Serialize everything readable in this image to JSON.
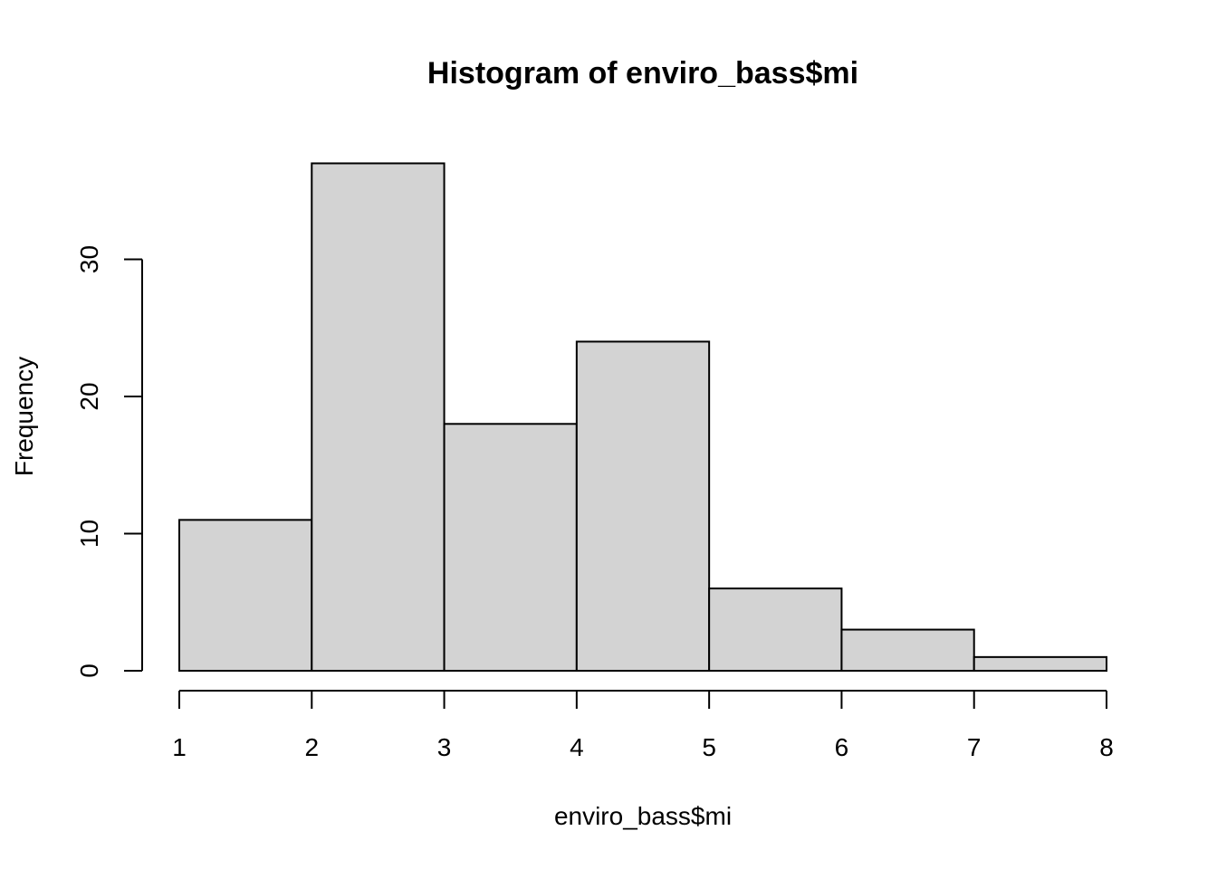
{
  "chart_data": {
    "type": "bar",
    "title": "Histogram of enviro_bass$mi",
    "xlabel": "enviro_bass$mi",
    "ylabel": "Frequency",
    "bins": [
      {
        "from": 1,
        "to": 2,
        "count": 11
      },
      {
        "from": 2,
        "to": 3,
        "count": 37
      },
      {
        "from": 3,
        "to": 4,
        "count": 18
      },
      {
        "from": 4,
        "to": 5,
        "count": 24
      },
      {
        "from": 5,
        "to": 6,
        "count": 6
      },
      {
        "from": 6,
        "to": 7,
        "count": 3
      },
      {
        "from": 7,
        "to": 8,
        "count": 1
      }
    ],
    "xlim": [
      1,
      8
    ],
    "ylim": [
      0,
      37
    ],
    "x_ticks": [
      "1",
      "2",
      "3",
      "4",
      "5",
      "6",
      "7",
      "8"
    ],
    "y_ticks": [
      "0",
      "10",
      "20",
      "30"
    ],
    "grid": false,
    "colors": {
      "bar_fill": "#d3d3d3",
      "bar_stroke": "#000000"
    }
  }
}
